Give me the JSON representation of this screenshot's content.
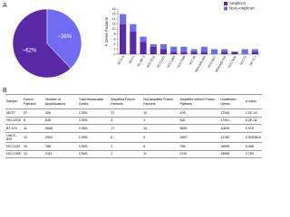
{
  "panel_labels": [
    "A",
    "B"
  ],
  "chart_data": [
    {
      "type": "pie",
      "values": [
        62,
        38
      ],
      "value_labels": [
        "~62%",
        "~38%"
      ],
      "colors": [
        "#5a2aa6",
        "#6f6cf2"
      ]
    },
    {
      "type": "bar",
      "ylabel": "# Gene Fusions",
      "categories": [
        "BT-474",
        "MCF7",
        "SK-BR-3",
        "HCC2218",
        "HCC1187",
        "HCC1395",
        "HCC1599",
        "HCC38",
        "MDA-MB-468",
        "HCC1937",
        "MDA-MB-436",
        "HCC1806",
        "HCC70",
        "ZR-75-1"
      ],
      "series": [
        {
          "name": "Amplicon",
          "color": "#5a2aa6",
          "values": [
            12,
            9,
            5,
            3,
            2,
            1,
            1,
            1,
            1,
            0,
            1,
            1,
            0,
            1
          ]
        },
        {
          "name": "Non-Amplicon",
          "color": "#6f6cf2",
          "values": [
            4,
            3,
            2,
            1,
            2,
            2,
            2,
            1,
            2,
            2,
            1,
            0,
            2,
            1
          ]
        }
      ],
      "ylim": [
        0,
        18
      ],
      "yticks": [
        0,
        2,
        4,
        6,
        8,
        10,
        12,
        14,
        16,
        18
      ],
      "legend": "upper right"
    }
  ],
  "table": {
    "header": [
      "Sample",
      "Fusion Partners",
      "Number of Amplifications",
      "Total Measurable Genes",
      "Amplified Fusion Partners",
      "Not-amplified Fusion Partners",
      "Amplified without Fusion Partners",
      "Unaffected Genes",
      "p-value"
    ],
    "rows": [
      [
        "MCF7",
        "27",
        "426",
        "17691",
        "17",
        "10",
        "409",
        "17255",
        "1.2E-19"
      ],
      [
        "HCC2218",
        "8",
        "636",
        "17691",
        "4",
        "4",
        "632",
        "17051",
        "2.2E-04"
      ],
      [
        "BT-474",
        "31",
        "5848",
        "17691",
        "17",
        "14",
        "5831",
        "11829",
        "0.019"
      ],
      [
        "UACC-893",
        "12",
        "2903",
        "17691",
        "6",
        "6",
        "2897",
        "14782",
        "0.0004616"
      ],
      [
        "HCC1187",
        "10",
        "788",
        "17691",
        "2",
        "8",
        "786",
        "16895",
        "0.056"
      ],
      [
        "HCC1395",
        "12",
        "2111",
        "17691",
        "1",
        "11",
        "2110",
        "15569",
        "0.783"
      ]
    ]
  }
}
